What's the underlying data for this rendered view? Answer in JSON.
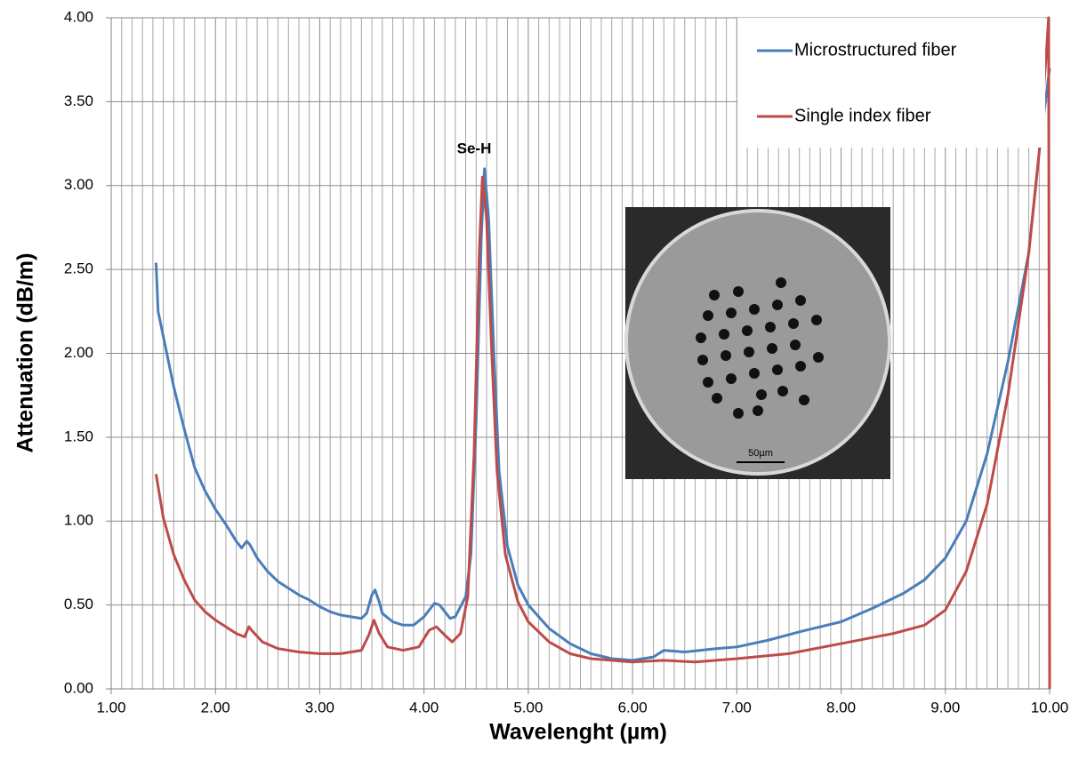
{
  "chart_data": {
    "type": "line",
    "x_label": "Wavelenght (µm)",
    "y_label": "Attenuation (dB/m)",
    "xlim": [
      1,
      10
    ],
    "ylim": [
      0,
      4
    ],
    "xticks": [
      {
        "value": 1,
        "label": "1.00"
      },
      {
        "value": 2,
        "label": "2.00"
      },
      {
        "value": 3,
        "label": "3.00"
      },
      {
        "value": 4,
        "label": "4.00"
      },
      {
        "value": 5,
        "label": "5.00"
      },
      {
        "value": 6,
        "label": "6.00"
      },
      {
        "value": 7,
        "label": "7.00"
      },
      {
        "value": 8,
        "label": "8.00"
      },
      {
        "value": 9,
        "label": "9.00"
      },
      {
        "value": 10,
        "label": "10.00"
      }
    ],
    "yticks": [
      {
        "value": 0,
        "label": "0.00"
      },
      {
        "value": 0.5,
        "label": "0.50"
      },
      {
        "value": 1,
        "label": "1.00"
      },
      {
        "value": 1.5,
        "label": "1.50"
      },
      {
        "value": 2,
        "label": "2.00"
      },
      {
        "value": 2.5,
        "label": "2.50"
      },
      {
        "value": 3,
        "label": "3.00"
      },
      {
        "value": 3.5,
        "label": "3.50"
      },
      {
        "value": 4,
        "label": "4.00"
      }
    ],
    "grid": true,
    "legend": "top-right",
    "annotations": [
      "Se-H"
    ],
    "inset_scale_label": "50µm",
    "series": [
      {
        "name": "Microstructured fiber",
        "color": "#4a7ebb",
        "x": [
          1.43,
          1.45,
          1.5,
          1.55,
          1.6,
          1.7,
          1.8,
          1.9,
          2.0,
          2.1,
          2.2,
          2.25,
          2.3,
          2.33,
          2.4,
          2.5,
          2.6,
          2.7,
          2.8,
          2.9,
          3.0,
          3.1,
          3.2,
          3.3,
          3.4,
          3.45,
          3.5,
          3.53,
          3.57,
          3.6,
          3.7,
          3.8,
          3.9,
          4.0,
          4.1,
          4.15,
          4.2,
          4.25,
          4.3,
          4.4,
          4.45,
          4.5,
          4.55,
          4.58,
          4.62,
          4.67,
          4.72,
          4.8,
          4.9,
          5.0,
          5.2,
          5.4,
          5.6,
          5.8,
          6.0,
          6.2,
          6.3,
          6.5,
          6.8,
          7.0,
          7.3,
          7.6,
          8.0,
          8.3,
          8.6,
          8.8,
          9.0,
          9.2,
          9.4,
          9.6,
          9.8,
          9.9,
          10.0
        ],
        "values": [
          2.54,
          2.25,
          2.1,
          1.95,
          1.8,
          1.55,
          1.32,
          1.18,
          1.07,
          0.98,
          0.88,
          0.84,
          0.88,
          0.86,
          0.78,
          0.7,
          0.64,
          0.6,
          0.56,
          0.53,
          0.49,
          0.46,
          0.44,
          0.43,
          0.42,
          0.45,
          0.56,
          0.59,
          0.52,
          0.45,
          0.4,
          0.38,
          0.38,
          0.43,
          0.51,
          0.5,
          0.46,
          0.42,
          0.43,
          0.55,
          0.8,
          1.6,
          2.7,
          3.1,
          2.8,
          2.0,
          1.3,
          0.85,
          0.62,
          0.5,
          0.36,
          0.27,
          0.21,
          0.18,
          0.17,
          0.19,
          0.23,
          0.22,
          0.24,
          0.25,
          0.29,
          0.34,
          0.4,
          0.48,
          0.57,
          0.65,
          0.78,
          1.0,
          1.4,
          1.95,
          2.6,
          3.2,
          3.7
        ]
      },
      {
        "name": "Single index fiber",
        "color": "#be4b48",
        "x": [
          1.43,
          1.5,
          1.6,
          1.7,
          1.8,
          1.9,
          2.0,
          2.1,
          2.2,
          2.28,
          2.32,
          2.36,
          2.45,
          2.6,
          2.8,
          3.0,
          3.2,
          3.4,
          3.47,
          3.52,
          3.57,
          3.65,
          3.8,
          3.95,
          4.05,
          4.12,
          4.2,
          4.27,
          4.35,
          4.42,
          4.48,
          4.53,
          4.56,
          4.6,
          4.65,
          4.7,
          4.78,
          4.9,
          5.0,
          5.2,
          5.4,
          5.6,
          5.8,
          6.0,
          6.3,
          6.6,
          7.0,
          7.5,
          8.0,
          8.5,
          8.8,
          9.0,
          9.2,
          9.4,
          9.6,
          9.8,
          9.9,
          9.97,
          9.99,
          10.0
        ],
        "values": [
          1.28,
          1.02,
          0.8,
          0.65,
          0.53,
          0.46,
          0.41,
          0.37,
          0.33,
          0.31,
          0.37,
          0.34,
          0.28,
          0.24,
          0.22,
          0.21,
          0.21,
          0.23,
          0.32,
          0.41,
          0.33,
          0.25,
          0.23,
          0.25,
          0.35,
          0.37,
          0.32,
          0.28,
          0.33,
          0.55,
          1.4,
          2.6,
          3.05,
          2.8,
          2.0,
          1.3,
          0.8,
          0.52,
          0.4,
          0.28,
          0.21,
          0.18,
          0.17,
          0.16,
          0.17,
          0.16,
          0.18,
          0.21,
          0.27,
          0.33,
          0.38,
          0.47,
          0.7,
          1.1,
          1.75,
          2.6,
          3.2,
          3.8,
          4.0,
          0.0
        ]
      }
    ]
  }
}
